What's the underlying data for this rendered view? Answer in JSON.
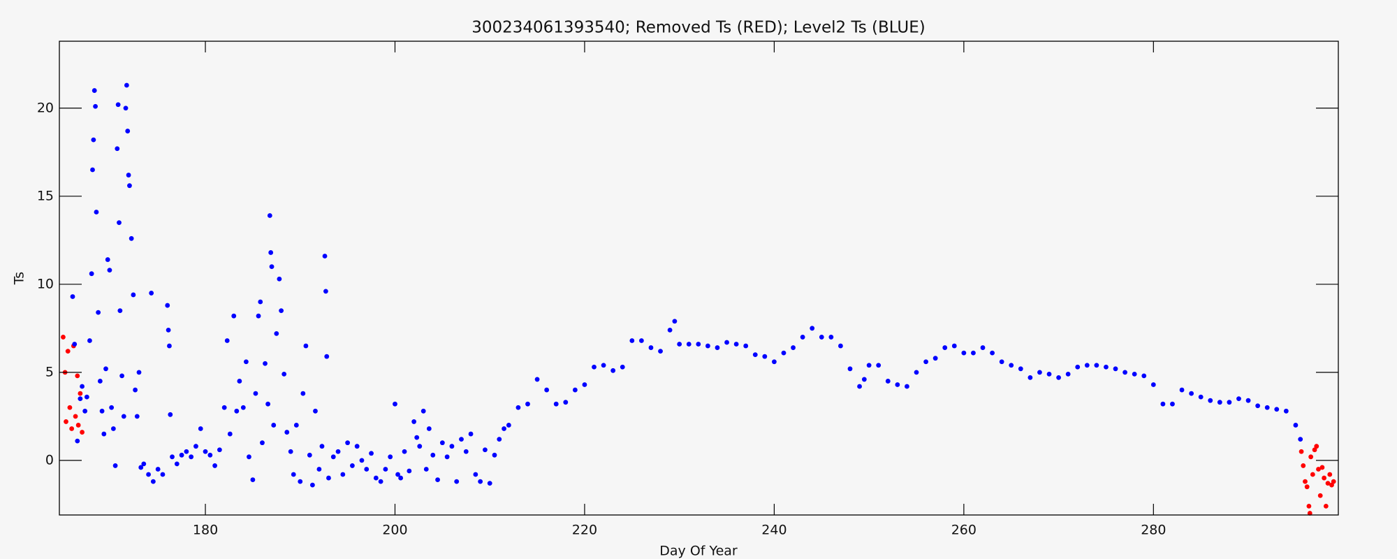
{
  "chart_data": {
    "type": "scatter",
    "title": "300234061393540; Removed Ts (RED); Level2 Ts (BLUE)",
    "x_label": "Day Of Year",
    "y_label": "Ts",
    "xlim": [
      164.6,
      299.5
    ],
    "ylim": [
      -3.1,
      23.8
    ],
    "xticks": [
      180,
      200,
      220,
      240,
      260,
      280
    ],
    "yticks": [
      0,
      5,
      10,
      15,
      20
    ],
    "series": [
      {
        "color": "#ff0000",
        "x": [
          165,
          165.2,
          165.3,
          165.5,
          165.7,
          165.9,
          166.1,
          166.3,
          166.5,
          166.6,
          166.8,
          167,
          295.6,
          295.8,
          296,
          296.2,
          296.4,
          296.5,
          296.6,
          296.8,
          297,
          297.2,
          297.4,
          297.6,
          297.8,
          298,
          298.2,
          298.4,
          298.6,
          298.8,
          299
        ],
        "values": [
          7.0,
          5.0,
          2.2,
          6.2,
          3.0,
          1.8,
          6.5,
          2.5,
          4.8,
          2.0,
          3.8,
          1.6,
          0.5,
          -0.3,
          -1.2,
          -1.5,
          -2.6,
          -3.0,
          0.2,
          -0.8,
          0.6,
          0.8,
          -0.5,
          -2.0,
          -0.4,
          -1.0,
          -2.6,
          -1.3,
          -0.8,
          -1.4,
          -1.2
        ]
      },
      {
        "color": "#0000ff",
        "x": [
          166,
          166.2,
          166.5,
          166.8,
          167,
          167.3,
          167.5,
          167.8,
          168,
          168.1,
          168.2,
          168.3,
          168.4,
          168.5,
          168.7,
          168.9,
          169.1,
          169.3,
          169.5,
          169.7,
          169.9,
          170.1,
          170.3,
          170.5,
          170.7,
          170.8,
          170.9,
          171,
          171.2,
          171.4,
          171.6,
          171.7,
          171.8,
          171.9,
          172,
          172.2,
          172.4,
          172.6,
          172.8,
          173,
          173.2,
          173.5,
          174,
          174.3,
          174.5,
          175,
          175.5,
          176,
          176.1,
          176.2,
          176.3,
          176.5,
          177,
          177.5,
          178,
          178.5,
          179,
          179.5,
          180,
          180.5,
          181,
          181.5,
          182,
          182.3,
          182.6,
          183,
          183.3,
          183.6,
          184,
          184.3,
          184.6,
          185,
          185.3,
          185.6,
          185.8,
          186,
          186.3,
          186.6,
          186.8,
          186.9,
          187,
          187.2,
          187.5,
          187.8,
          188,
          188.3,
          188.6,
          189,
          189.3,
          189.6,
          190,
          190.3,
          190.6,
          191,
          191.3,
          191.6,
          192,
          192.3,
          192.6,
          192.7,
          192.8,
          193,
          193.5,
          194,
          194.5,
          195,
          195.5,
          196,
          196.5,
          197,
          197.5,
          198,
          198.5,
          199,
          199.5,
          200,
          200.3,
          200.6,
          201,
          201.5,
          202,
          202.3,
          202.6,
          203,
          203.3,
          203.6,
          204,
          204.5,
          205,
          205.5,
          206,
          206.5,
          207,
          207.5,
          208,
          208.5,
          209,
          209.5,
          210,
          210.5,
          211,
          211.5,
          212,
          213,
          214,
          215,
          216,
          217,
          218,
          219,
          220,
          221,
          222,
          223,
          224,
          225,
          226,
          227,
          228,
          229,
          229.5,
          230,
          231,
          232,
          233,
          234,
          235,
          236,
          237,
          238,
          239,
          240,
          241,
          242,
          243,
          244,
          245,
          246,
          247,
          248,
          249,
          249.5,
          250,
          251,
          252,
          253,
          254,
          255,
          256,
          257,
          258,
          259,
          260,
          261,
          262,
          263,
          264,
          265,
          266,
          267,
          268,
          269,
          270,
          271,
          272,
          273,
          274,
          275,
          276,
          277,
          278,
          279,
          280,
          281,
          282,
          283,
          284,
          285,
          286,
          287,
          288,
          289,
          290,
          291,
          292,
          293,
          294,
          295,
          295.5
        ],
        "values": [
          9.3,
          6.6,
          1.1,
          3.5,
          4.2,
          2.8,
          3.6,
          6.8,
          10.6,
          16.5,
          18.2,
          21.0,
          20.1,
          14.1,
          8.4,
          4.5,
          2.8,
          1.5,
          5.2,
          11.4,
          10.8,
          3.0,
          1.8,
          -0.3,
          17.7,
          20.2,
          13.5,
          8.5,
          4.8,
          2.5,
          20.0,
          21.3,
          18.7,
          16.2,
          15.6,
          12.6,
          9.4,
          4.0,
          2.5,
          5.0,
          -0.4,
          -0.2,
          -0.8,
          9.5,
          -1.2,
          -0.5,
          -0.8,
          8.8,
          7.4,
          6.5,
          2.6,
          0.2,
          -0.2,
          0.3,
          0.5,
          0.2,
          0.8,
          1.8,
          0.5,
          0.3,
          -0.3,
          0.6,
          3.0,
          6.8,
          1.5,
          8.2,
          2.8,
          4.5,
          3.0,
          5.6,
          0.2,
          -1.1,
          3.8,
          8.2,
          9.0,
          1.0,
          5.5,
          3.2,
          13.9,
          11.8,
          11.0,
          2.0,
          7.2,
          10.3,
          8.5,
          4.9,
          1.6,
          0.5,
          -0.8,
          2.0,
          -1.2,
          3.8,
          6.5,
          0.3,
          -1.4,
          2.8,
          -0.5,
          0.8,
          11.6,
          9.6,
          5.9,
          -1.0,
          0.2,
          0.5,
          -0.8,
          1.0,
          -0.3,
          0.8,
          0.0,
          -0.5,
          0.4,
          -1.0,
          -1.2,
          -0.5,
          0.2,
          3.2,
          -0.8,
          -1.0,
          0.5,
          -0.6,
          2.2,
          1.3,
          0.8,
          2.8,
          -0.5,
          1.8,
          0.3,
          -1.1,
          1.0,
          0.2,
          0.8,
          -1.2,
          1.2,
          0.5,
          1.5,
          -0.8,
          -1.2,
          0.6,
          -1.3,
          0.3,
          1.2,
          1.8,
          2.0,
          3.0,
          3.2,
          4.6,
          4.0,
          3.2,
          3.3,
          4.0,
          4.3,
          5.3,
          5.4,
          5.1,
          5.3,
          6.8,
          6.8,
          6.4,
          6.2,
          7.4,
          7.9,
          6.6,
          6.6,
          6.6,
          6.5,
          6.4,
          6.7,
          6.6,
          6.5,
          6.0,
          5.9,
          5.6,
          6.1,
          6.4,
          7.0,
          7.5,
          7.0,
          7.0,
          6.5,
          5.2,
          4.2,
          4.6,
          5.4,
          5.4,
          4.5,
          4.3,
          4.2,
          5.0,
          5.6,
          5.8,
          6.4,
          6.5,
          6.1,
          6.1,
          6.4,
          6.1,
          5.6,
          5.4,
          5.2,
          4.7,
          5.0,
          4.9,
          4.7,
          4.9,
          5.3,
          5.4,
          5.4,
          5.3,
          5.2,
          5.0,
          4.9,
          4.8,
          4.3,
          3.2,
          3.2,
          4.0,
          3.8,
          3.6,
          3.4,
          3.3,
          3.3,
          3.5,
          3.4,
          3.1,
          3.0,
          2.9,
          2.8,
          2.0,
          1.2
        ]
      }
    ]
  }
}
